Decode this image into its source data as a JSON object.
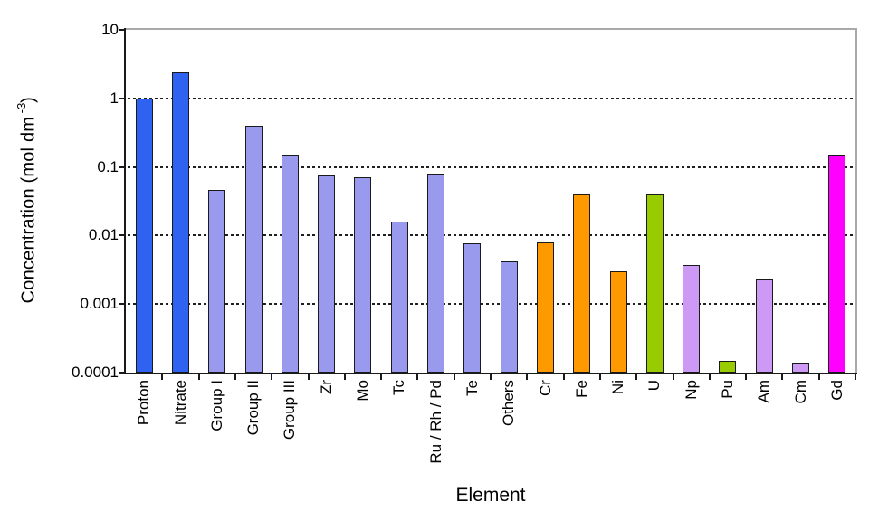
{
  "chart_data": {
    "type": "bar",
    "y_scale": "log",
    "ylim": [
      0.0001,
      10
    ],
    "xlabel": "Element",
    "ylabel": {
      "prefix": "Concentration (mol dm",
      "superscript": "-3",
      "suffix": ")"
    },
    "y_ticks": [
      {
        "label": "10",
        "value": 10
      },
      {
        "label": "1",
        "value": 1
      },
      {
        "label": "0.1",
        "value": 0.1
      },
      {
        "label": "0.01",
        "value": 0.01
      },
      {
        "label": "0.001",
        "value": 0.001
      },
      {
        "label": "0.0001",
        "value": 0.0001
      }
    ],
    "grid": {
      "style": "dashed-horizontal",
      "color": "#1f1f1f"
    },
    "axis_color": "#1a1a1a",
    "frame_color": "#a9a9a9",
    "background": "#ffffff",
    "bar_border_color": "#1a1a1a",
    "categories": [
      "Proton",
      "Nitrate",
      "Group I",
      "Group II",
      "Group III",
      "Zr",
      "Mo",
      "Tc",
      "Ru / Rh / Pd",
      "Te",
      "Others",
      "Cr",
      "Fe",
      "Ni",
      "U",
      "Np",
      "Pu",
      "Am",
      "Cm",
      "Gd"
    ],
    "values": [
      1.0,
      2.4,
      0.046,
      0.4,
      0.15,
      0.075,
      0.07,
      0.016,
      0.08,
      0.0077,
      0.0042,
      0.008,
      0.04,
      0.003,
      0.04,
      0.0037,
      0.00015,
      0.0023,
      0.00014,
      0.15
    ],
    "colors": [
      "#2F62F0",
      "#2F62F0",
      "#9999EE",
      "#9999EE",
      "#9999EE",
      "#9999EE",
      "#9999EE",
      "#9999EE",
      "#9999EE",
      "#9999EE",
      "#9999EE",
      "#FF9900",
      "#FF9900",
      "#FF9900",
      "#99CC00",
      "#CC99F5",
      "#99CC00",
      "#CC99F5",
      "#CC99F5",
      "#FF00FF"
    ]
  }
}
